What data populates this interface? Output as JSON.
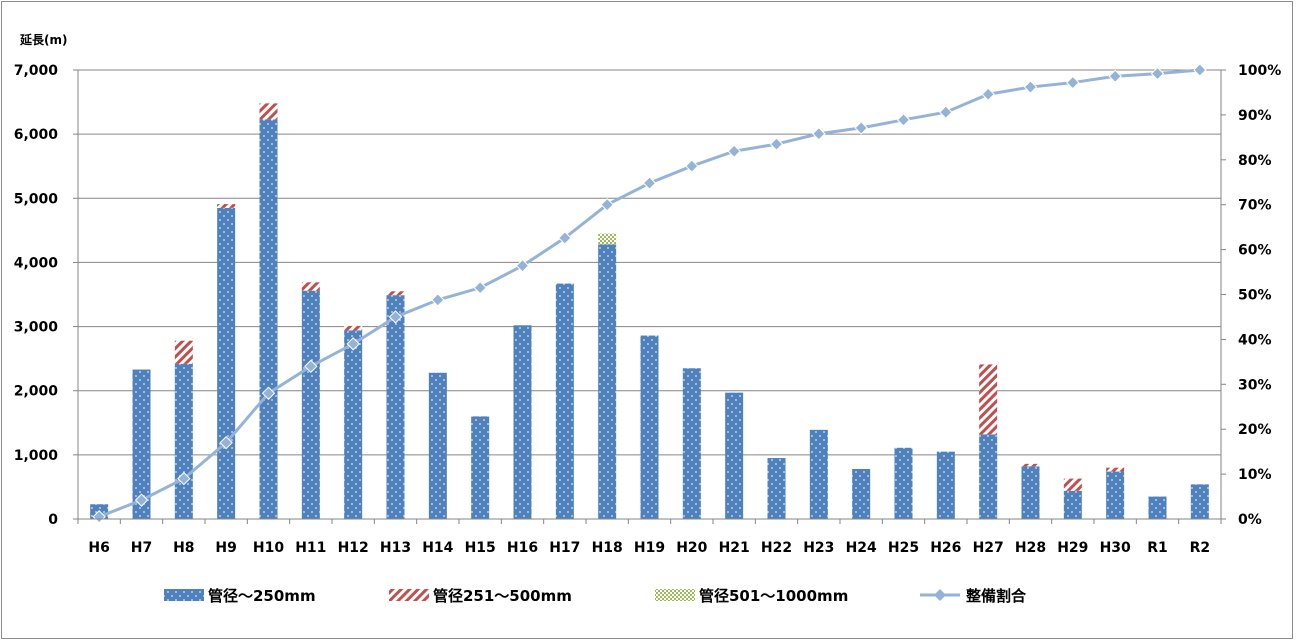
{
  "chart_data": {
    "type": "bar",
    "ylabel": "延長(m)",
    "ylim": [
      0,
      7000
    ],
    "yticks": [
      "0",
      "1,000",
      "2,000",
      "3,000",
      "4,000",
      "5,000",
      "6,000",
      "7,000"
    ],
    "y2lim": [
      0,
      100
    ],
    "y2ticks": [
      "0%",
      "10%",
      "20%",
      "30%",
      "40%",
      "50%",
      "60%",
      "70%",
      "80%",
      "90%",
      "100%"
    ],
    "grid": true,
    "legend": "bottom",
    "categories": [
      "H6",
      "H7",
      "H8",
      "H9",
      "H10",
      "H11",
      "H12",
      "H13",
      "H14",
      "H15",
      "H16",
      "H17",
      "H18",
      "H19",
      "H20",
      "H21",
      "H22",
      "H23",
      "H24",
      "H25",
      "H26",
      "H27",
      "H28",
      "H29",
      "H30",
      "R1",
      "R2"
    ],
    "series": [
      {
        "name": "管径～250mm",
        "kind": "stacked-bar",
        "color": "#4f81bd",
        "values": [
          230,
          2330,
          2420,
          4850,
          6230,
          3560,
          2940,
          3490,
          2280,
          1600,
          3020,
          3670,
          4280,
          2860,
          2350,
          1970,
          950,
          1390,
          780,
          1110,
          1050,
          1320,
          820,
          440,
          740,
          350,
          540
        ]
      },
      {
        "name": "管径251～500mm",
        "kind": "stacked-bar",
        "color": "#c0504d",
        "values": [
          0,
          0,
          360,
          60,
          250,
          130,
          70,
          60,
          0,
          0,
          0,
          0,
          0,
          0,
          0,
          0,
          0,
          0,
          0,
          0,
          0,
          1090,
          40,
          190,
          60,
          0,
          0
        ]
      },
      {
        "name": "管径501～1000mm",
        "kind": "stacked-bar",
        "color": "#9bbb59",
        "values": [
          0,
          0,
          0,
          0,
          0,
          0,
          0,
          0,
          0,
          0,
          0,
          0,
          170,
          0,
          0,
          0,
          0,
          0,
          0,
          0,
          0,
          0,
          0,
          0,
          0,
          0,
          0
        ]
      },
      {
        "name": "整備割合",
        "kind": "line",
        "axis": "right",
        "color": "#95b3d7",
        "values": [
          0.5,
          4.2,
          9,
          17,
          28,
          34,
          39,
          45,
          48.8,
          51.5,
          56.4,
          62.6,
          70,
          74.8,
          78.6,
          81.9,
          83.5,
          85.8,
          87.1,
          88.9,
          90.6,
          94.6,
          96.2,
          97.2,
          98.6,
          99.2,
          100
        ]
      }
    ]
  }
}
